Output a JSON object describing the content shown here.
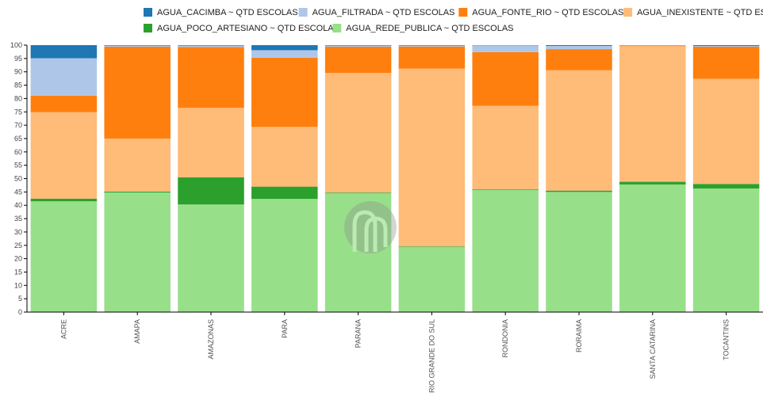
{
  "chart_data": {
    "type": "bar",
    "stacked": true,
    "normalized_percent": true,
    "categories": [
      "ACRE",
      "AMAPA",
      "AMAZONAS",
      "PARA",
      "PARANA",
      "RIO GRANDE DO SUL",
      "RONDONIA",
      "RORAIMA",
      "SANTA CATARINA",
      "TOCANTINS"
    ],
    "series": [
      {
        "name": "AGUA_REDE_PUBLICA ~ QTD ESCOLAS",
        "color": "#98df8a",
        "values": [
          41.5,
          44.8,
          40.3,
          42.4,
          44.6,
          24.4,
          45.8,
          45.0,
          47.8,
          46.3
        ]
      },
      {
        "name": "AGUA_POCO_ARTESIANO ~ QTD ESCOLAS",
        "color": "#2ca02c",
        "values": [
          1.0,
          0.3,
          10.2,
          4.6,
          0.2,
          0.2,
          0.2,
          0.5,
          1.0,
          1.7
        ]
      },
      {
        "name": "AGUA_INEXISTENTE ~ QTD ESCOLAS",
        "color": "#ffbb78",
        "values": [
          32.4,
          19.9,
          26.0,
          22.4,
          44.8,
          66.6,
          31.3,
          45.1,
          50.8,
          39.4
        ]
      },
      {
        "name": "AGUA_FONTE_RIO ~ QTD ESCOLAS",
        "color": "#ff7f0e",
        "values": [
          6.2,
          34.4,
          22.8,
          25.9,
          9.8,
          8.3,
          20.1,
          7.9,
          0.1,
          12.0
        ]
      },
      {
        "name": "AGUA_FILTRADA ~ QTD ESCOLAS",
        "color": "#aec7e8",
        "values": [
          14.0,
          0.4,
          0.5,
          2.8,
          0.4,
          0.3,
          2.5,
          1.2,
          0.2,
          0.3
        ]
      },
      {
        "name": "AGUA_CACIMBA ~ QTD ESCOLAS",
        "color": "#1f77b4",
        "values": [
          4.9,
          0.2,
          0.2,
          1.9,
          0.2,
          0.2,
          0.1,
          0.3,
          0.1,
          0.3
        ]
      }
    ],
    "legend_order": [
      "AGUA_CACIMBA ~ QTD ESCOLAS",
      "AGUA_FILTRADA ~ QTD ESCOLAS",
      "AGUA_FONTE_RIO ~ QTD ESCOLAS",
      "AGUA_INEXISTENTE ~ QTD ESCOLAS",
      "AGUA_POCO_ARTESIANO ~ QTD ESCOLAS",
      "AGUA_REDE_PUBLICA ~ QTD ESCOLAS"
    ],
    "ylim": [
      0,
      100
    ],
    "yticks": [
      0,
      5,
      10,
      15,
      20,
      25,
      30,
      35,
      40,
      45,
      50,
      55,
      60,
      65,
      70,
      75,
      80,
      85,
      90,
      95,
      100
    ],
    "title": "",
    "xlabel": "",
    "ylabel": "",
    "legend_position": "top-right",
    "grid": false,
    "watermark_icon": "chart-logo-watermark-icon"
  }
}
